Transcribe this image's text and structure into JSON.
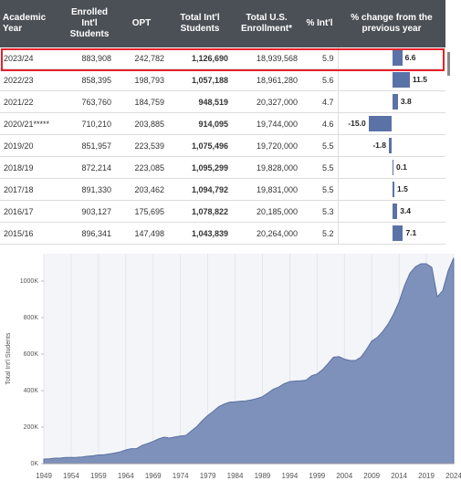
{
  "table": {
    "headers": [
      "Academic Year",
      "Enrolled Int'l Students",
      "OPT",
      "Total Int'l Students",
      "Total U.S. Enrollment*",
      "% Int'l",
      "% change from the previous year"
    ],
    "rows": [
      [
        "2023/24",
        "883,908",
        "242,782",
        "1,126,690",
        "18,939,568",
        "5.9"
      ],
      [
        "2022/23",
        "858,395",
        "198,793",
        "1,057,188",
        "18,961,280",
        "5.6"
      ],
      [
        "2021/22",
        "763,760",
        "184,759",
        "948,519",
        "20,327,000",
        "4.7"
      ],
      [
        "2020/21*****",
        "710,210",
        "203,885",
        "914,095",
        "19,744,000",
        "4.6"
      ],
      [
        "2019/20",
        "851,957",
        "223,539",
        "1,075,496",
        "19,720,000",
        "5.5"
      ],
      [
        "2018/19",
        "872,214",
        "223,085",
        "1,095,299",
        "19,828,000",
        "5.5"
      ],
      [
        "2017/18",
        "891,330",
        "203,462",
        "1,094,792",
        "19,831,000",
        "5.5"
      ],
      [
        "2016/17",
        "903,127",
        "175,695",
        "1,078,822",
        "20,185,000",
        "5.3"
      ],
      [
        "2015/16",
        "896,341",
        "147,498",
        "1,043,839",
        "20,264,000",
        "5.2"
      ]
    ],
    "change": {
      "values": [
        6.6,
        11.5,
        3.8,
        -15.0,
        -1.8,
        0.1,
        1.5,
        3.4,
        7.1
      ],
      "value_labels": [
        "6.6",
        "11.5",
        "3.8",
        "-15.0",
        "-1.8",
        "0.1",
        "1.5",
        "3.4",
        "7.1"
      ],
      "xlim": [
        -35,
        35
      ],
      "color": "#5b72a6"
    }
  },
  "chart_data": {
    "type": "area",
    "y_label": "Total Int'l Students",
    "color": "#7e91bb",
    "line_color": "#5a70a3",
    "grid": true,
    "x": [
      1949,
      1950,
      1951,
      1952,
      1953,
      1954,
      1955,
      1956,
      1957,
      1958,
      1959,
      1960,
      1961,
      1962,
      1963,
      1964,
      1965,
      1966,
      1967,
      1968,
      1969,
      1970,
      1971,
      1972,
      1973,
      1974,
      1975,
      1976,
      1977,
      1978,
      1979,
      1980,
      1981,
      1982,
      1983,
      1984,
      1985,
      1986,
      1987,
      1988,
      1989,
      1990,
      1991,
      1992,
      1993,
      1994,
      1995,
      1996,
      1997,
      1998,
      1999,
      2000,
      2001,
      2002,
      2003,
      2004,
      2005,
      2006,
      2007,
      2008,
      2009,
      2010,
      2011,
      2012,
      2013,
      2014,
      2015,
      2016,
      2017,
      2018,
      2019,
      2020,
      2021,
      2022,
      2023,
      2024
    ],
    "values": [
      25000,
      26000,
      29800,
      30500,
      33700,
      34000,
      34200,
      36500,
      40700,
      43400,
      47200,
      48500,
      53100,
      58100,
      64700,
      74800,
      82000,
      82700,
      100300,
      110300,
      121400,
      134900,
      144700,
      140100,
      146100,
      151100,
      154600,
      179300,
      203100,
      235500,
      263900,
      286300,
      311900,
      326300,
      336900,
      338900,
      342100,
      343800,
      349600,
      356200,
      366400,
      386900,
      407500,
      419600,
      438600,
      449700,
      452600,
      453800,
      457600,
      481300,
      490900,
      514700,
      547900,
      583000,
      586300,
      572500,
      565000,
      564800,
      583000,
      623800,
      671600,
      690900,
      723300,
      764500,
      819600,
      886000,
      974900,
      1043839,
      1078822,
      1094792,
      1095299,
      1075496,
      914095,
      948519,
      1057188,
      1126690
    ],
    "xlim": [
      1949,
      2024
    ],
    "xticks": [
      1949,
      1954,
      1959,
      1964,
      1969,
      1974,
      1979,
      1984,
      1989,
      1994,
      1999,
      2004,
      2009,
      2014,
      2019,
      2024
    ],
    "ylim": [
      0,
      1150000
    ],
    "yticks": [
      {
        "value": 0,
        "label": "0K"
      },
      {
        "value": 200000,
        "label": "200K"
      },
      {
        "value": 400000,
        "label": "400K"
      },
      {
        "value": 600000,
        "label": "600K"
      },
      {
        "value": 800000,
        "label": "800K"
      },
      {
        "value": 1000000,
        "label": "1000K"
      }
    ]
  }
}
